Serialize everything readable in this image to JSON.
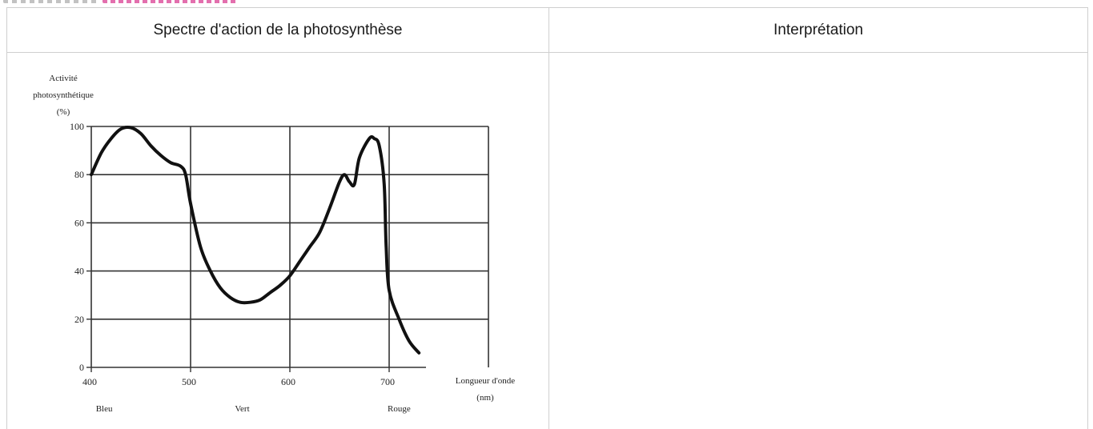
{
  "table": {
    "left_header": "Spectre d'action de la photosynthèse",
    "right_header": "Interprétation"
  },
  "chart_data": {
    "type": "line",
    "ylabel_lines": [
      "Activité",
      "photosynthétique",
      "(%)"
    ],
    "xlabel_lines": [
      "Longueur d'onde",
      "(nm)"
    ],
    "xlim": [
      400,
      800
    ],
    "ylim": [
      0,
      100
    ],
    "x_ticks": [
      400,
      500,
      600,
      700
    ],
    "y_ticks": [
      0,
      20,
      40,
      60,
      80,
      100
    ],
    "color_labels": [
      {
        "text": "Bleu",
        "x": 413
      },
      {
        "text": "Vert",
        "x": 552
      },
      {
        "text": "Rouge",
        "x": 710
      }
    ],
    "grid": true,
    "series": [
      {
        "color": "#111111",
        "x": [
          400,
          410,
          420,
          430,
          440,
          450,
          460,
          470,
          480,
          490,
          495,
          500,
          510,
          520,
          530,
          540,
          550,
          560,
          570,
          580,
          590,
          600,
          610,
          620,
          630,
          640,
          650,
          655,
          660,
          665,
          670,
          680,
          685,
          690,
          695,
          697,
          700,
          710,
          720,
          730
        ],
        "y": [
          80,
          89,
          95,
          99,
          99.5,
          97,
          92,
          88,
          85,
          83.5,
          80,
          68,
          50,
          40,
          33,
          29,
          27,
          27,
          28,
          31,
          34,
          38,
          44,
          50,
          56,
          66,
          77,
          80,
          77,
          76,
          87,
          95,
          95,
          92,
          76,
          50,
          32,
          20,
          11,
          6
        ]
      }
    ]
  }
}
